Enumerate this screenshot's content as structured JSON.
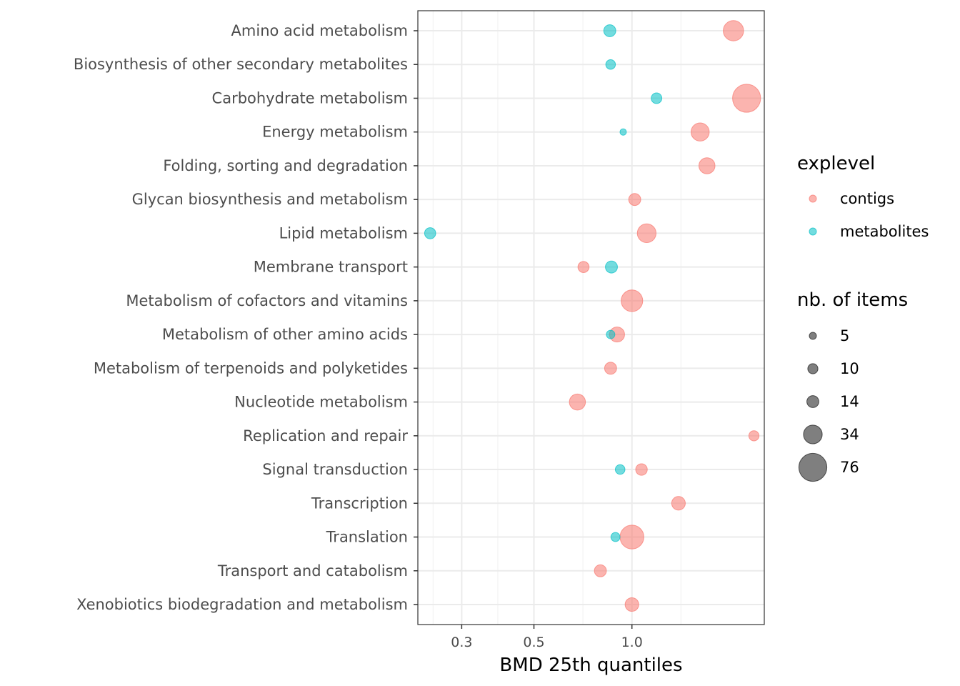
{
  "chart_data": {
    "type": "scatter",
    "xlabel": "BMD 25th quantiles",
    "x_scale": "log",
    "xlim": [
      0.22,
      2.55
    ],
    "x_ticks": [
      0.3,
      0.5,
      1.0
    ],
    "x_tick_labels": [
      "0.3",
      "0.5",
      "1.0"
    ],
    "categories": [
      "Amino acid metabolism",
      "Biosynthesis of other secondary metabolites",
      "Carbohydrate metabolism",
      "Energy metabolism",
      "Folding, sorting and degradation",
      "Glycan biosynthesis and metabolism",
      "Lipid metabolism",
      "Membrane transport",
      "Metabolism of cofactors and vitamins",
      "Metabolism of other amino acids",
      "Metabolism of terpenoids and polyketides",
      "Nucleotide metabolism",
      "Replication and repair",
      "Signal transduction",
      "Transcription",
      "Translation",
      "Transport and catabolism",
      "Xenobiotics biodegradation and metabolism"
    ],
    "series": [
      {
        "name": "contigs",
        "color": "#F8766D",
        "points": [
          {
            "category": "Amino acid metabolism",
            "x": 2.05,
            "size": 40
          },
          {
            "category": "Carbohydrate metabolism",
            "x": 2.25,
            "size": 76
          },
          {
            "category": "Energy metabolism",
            "x": 1.62,
            "size": 32
          },
          {
            "category": "Folding, sorting and degradation",
            "x": 1.7,
            "size": 25
          },
          {
            "category": "Glycan biosynthesis and metabolism",
            "x": 1.02,
            "size": 14
          },
          {
            "category": "Lipid metabolism",
            "x": 1.11,
            "size": 34
          },
          {
            "category": "Membrane transport",
            "x": 0.71,
            "size": 12
          },
          {
            "category": "Metabolism of cofactors and vitamins",
            "x": 1.0,
            "size": 45
          },
          {
            "category": "Metabolism of other amino acids",
            "x": 0.9,
            "size": 22
          },
          {
            "category": "Metabolism of terpenoids and polyketides",
            "x": 0.86,
            "size": 14
          },
          {
            "category": "Nucleotide metabolism",
            "x": 0.68,
            "size": 25
          },
          {
            "category": "Replication and repair",
            "x": 2.37,
            "size": 10
          },
          {
            "category": "Signal transduction",
            "x": 1.07,
            "size": 13
          },
          {
            "category": "Transcription",
            "x": 1.39,
            "size": 18
          },
          {
            "category": "Translation",
            "x": 1.0,
            "size": 55
          },
          {
            "category": "Transport and catabolism",
            "x": 0.8,
            "size": 14
          },
          {
            "category": "Xenobiotics biodegradation and metabolism",
            "x": 1.0,
            "size": 18
          }
        ]
      },
      {
        "name": "metabolites",
        "color": "#00BFC4",
        "points": [
          {
            "category": "Amino acid metabolism",
            "x": 0.855,
            "size": 14
          },
          {
            "category": "Biosynthesis of other secondary metabolites",
            "x": 0.86,
            "size": 9
          },
          {
            "category": "Carbohydrate metabolism",
            "x": 1.19,
            "size": 11
          },
          {
            "category": "Energy metabolism",
            "x": 0.94,
            "size": 4
          },
          {
            "category": "Lipid metabolism",
            "x": 0.24,
            "size": 12
          },
          {
            "category": "Membrane transport",
            "x": 0.865,
            "size": 14
          },
          {
            "category": "Metabolism of other amino acids",
            "x": 0.86,
            "size": 7
          },
          {
            "category": "Signal transduction",
            "x": 0.92,
            "size": 9
          },
          {
            "category": "Translation",
            "x": 0.89,
            "size": 8
          }
        ]
      }
    ],
    "legend": {
      "position": "right",
      "color_title": "explevel",
      "color_entries": [
        "contigs",
        "metabolites"
      ],
      "size_title": "nb. of items",
      "size_entries": [
        "5",
        "10",
        "14",
        "34",
        "76"
      ]
    },
    "grid": true
  }
}
